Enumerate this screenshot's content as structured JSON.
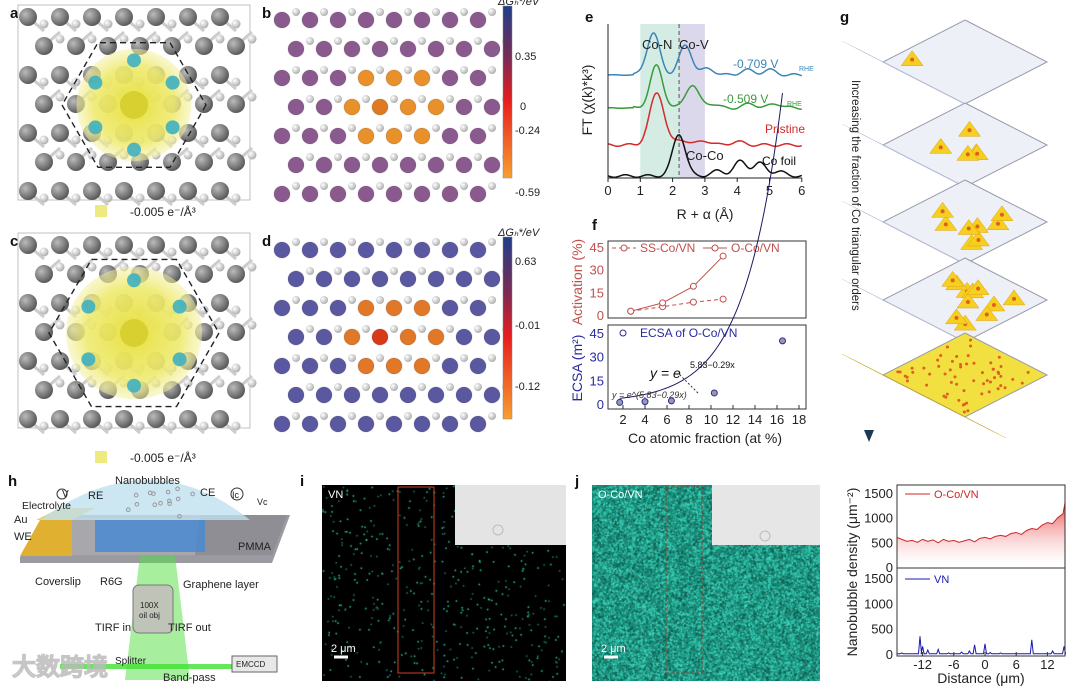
{
  "panels": {
    "a": {
      "label": "a",
      "legend": "-0.005 e⁻/Å³"
    },
    "b": {
      "label": "b",
      "colorbar_title": "ΔGₕ*/eV",
      "colorbar_ticks": [
        "0.35",
        "0",
        "-0.24",
        "-0.59"
      ]
    },
    "c": {
      "label": "c",
      "legend": "-0.005 e⁻/Å³"
    },
    "d": {
      "label": "d",
      "colorbar_title": "ΔGₕ*/eV",
      "colorbar_ticks": [
        "0.63",
        "-0.01",
        "-0.12"
      ]
    },
    "e": {
      "label": "e"
    },
    "f": {
      "label": "f"
    },
    "g": {
      "label": "g",
      "arrow_text": "Increasing the fraction of Co triangular orders"
    },
    "h": {
      "label": "h",
      "labels": {
        "nanobubbles": "Nanobubbles",
        "re": "RE",
        "v": "V",
        "electrolyte": "Electrolyte",
        "ce": "CE",
        "ic": "Ic",
        "vc": "Vc",
        "au": "Au",
        "we": "WE",
        "pmma": "PMMA",
        "coverslip": "Coverslip",
        "r6g": "R6G",
        "graphene": "Graphene layer",
        "objective1": "100X",
        "objective2": "oil obj",
        "tirf_in": "TIRF in",
        "tirf_out": "TIRF out",
        "splitter": "Splitter",
        "bandpass": "Band-pass",
        "emccd": "EMCCD"
      }
    },
    "i": {
      "label": "i",
      "sample": "VN",
      "scale": "2 μm"
    },
    "j": {
      "label": "j",
      "sample": "O-Co/VN",
      "scale": "2 μm"
    }
  },
  "watermark": "大数跨境",
  "colors": {
    "blue": "#3a86b4",
    "green": "#3a9a3a",
    "red": "#d62a2a",
    "black": "#111111",
    "f_red": "#c0504d",
    "f_blue": "#2a2aa0",
    "k_red": "#d0242a",
    "k_blue": "#1a1ab0"
  },
  "chart_data": [
    {
      "id": "e",
      "type": "line",
      "xlabel": "R + α (Å)",
      "ylabel": "FT (χ(k)*k³)",
      "xlim": [
        0,
        6
      ],
      "xticks": [
        "0",
        "1",
        "2",
        "3",
        "4",
        "5",
        "6"
      ],
      "annotations": [
        "Co-N",
        "Co-V",
        "Co-Co"
      ],
      "shaded_regions": [
        {
          "from": 1,
          "to": 2.2,
          "name": "Co-N"
        },
        {
          "from": 2.2,
          "to": 3,
          "name": "Co-V"
        }
      ],
      "dashed_line_x": 2.2,
      "series": [
        {
          "name": "-0.709 V",
          "sub": "RHE",
          "color": "#3a86b4",
          "peaks": [
            [
              1.4,
              1.0
            ],
            [
              2.4,
              0.7
            ],
            [
              3.1,
              0.15
            ],
            [
              4.3,
              0.12
            ],
            [
              5.0,
              0.12
            ]
          ]
        },
        {
          "name": "-0.509 V",
          "sub": "RHE",
          "color": "#3a9a3a",
          "peaks": [
            [
              1.5,
              1.0
            ],
            [
              2.6,
              0.55
            ],
            [
              3.2,
              0.1
            ],
            [
              4.4,
              0.1
            ],
            [
              5.2,
              0.1
            ]
          ]
        },
        {
          "name": "Pristine",
          "color": "#d62a2a",
          "peaks": [
            [
              1.4,
              0.6
            ],
            [
              1.6,
              0.8
            ],
            [
              2.3,
              0.12
            ],
            [
              3.0,
              0.1
            ],
            [
              4.0,
              0.08
            ]
          ]
        },
        {
          "name": "Co foil",
          "color": "#111111",
          "peaks": [
            [
              2.2,
              1.0
            ],
            [
              3.4,
              0.12
            ],
            [
              4.1,
              0.35
            ],
            [
              4.7,
              0.3
            ],
            [
              5.3,
              0.1
            ]
          ]
        }
      ]
    },
    {
      "id": "f",
      "type": "scatter",
      "xlabel": "Co atomic fraction (at %)",
      "xticks": [
        "2",
        "4",
        "6",
        "8",
        "10",
        "12",
        "14",
        "16",
        "18"
      ],
      "top": {
        "ylabel": "Activation (%)",
        "yticks": [
          "0",
          "15",
          "30",
          "45"
        ],
        "ylim": [
          0,
          45
        ],
        "series": [
          {
            "name": "SS-Co/VN",
            "style": "dashed",
            "x": [
              2.7,
              5.6,
              8.4,
              11.1
            ],
            "y": [
              2.5,
              5.5,
              8.5,
              10.5
            ]
          },
          {
            "name": "O-Co/VN",
            "style": "solid",
            "x": [
              2.7,
              5.6,
              8.4,
              11.1
            ],
            "y": [
              2.5,
              8,
              19,
              39
            ]
          }
        ]
      },
      "bottom": {
        "ylabel": "ECSA (m²)",
        "yticks": [
          "0",
          "15",
          "30",
          "45"
        ],
        "ylim": [
          0,
          45
        ],
        "series": [
          {
            "name": "ECSA of O-Co/VN",
            "x": [
              1.7,
              4.0,
              6.4,
              10.3,
              16.5
            ],
            "y": [
              1,
              1.5,
              2,
              7,
              40
            ]
          }
        ],
        "fit": "y = e^(5.83−0.29x)",
        "fit_base": "y = e",
        "fit_exp": "5.83−0.29x"
      }
    },
    {
      "id": "k",
      "type": "area",
      "xlabel": "Distance (μm)",
      "ylabel": "Nanobubble density (μm⁻²)",
      "xlim": [
        -17,
        15.5
      ],
      "xticks": [
        "-12",
        "-6",
        "0",
        "6",
        "12"
      ],
      "xtick_values": [
        -12,
        -6,
        0,
        6,
        12
      ],
      "yticks": [
        "0",
        "500",
        "1000",
        "1500"
      ],
      "ylim": [
        0,
        1700
      ],
      "series": [
        {
          "name": "O-Co/VN",
          "x_start": -17,
          "x_step": 1,
          "y": [
            600,
            560,
            520,
            540,
            500,
            560,
            520,
            550,
            490,
            560,
            520,
            540,
            500,
            530,
            560,
            510,
            580,
            600,
            570,
            620,
            640,
            620,
            680,
            700,
            660,
            740,
            780,
            760,
            850,
            900,
            880,
            1000,
            1080,
            1300
          ]
        },
        {
          "name": "VN",
          "peaks": [
            [
              -16,
              20
            ],
            [
              -12.5,
              350
            ],
            [
              -12,
              150
            ],
            [
              -11,
              80
            ],
            [
              -9,
              90
            ],
            [
              -7,
              20
            ],
            [
              -4.5,
              40
            ],
            [
              -3,
              60
            ],
            [
              -2,
              180
            ],
            [
              0,
              200
            ],
            [
              1,
              30
            ],
            [
              3,
              20
            ],
            [
              9,
              280
            ],
            [
              13,
              60
            ],
            [
              15.2,
              150
            ]
          ]
        }
      ]
    }
  ]
}
